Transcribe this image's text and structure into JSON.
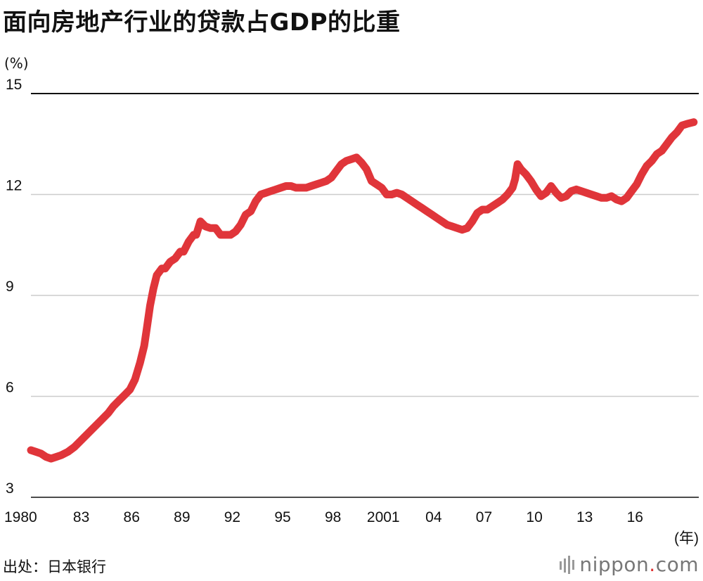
{
  "page": {
    "title": "面向房地产行业的贷款占GDP的比重",
    "source": "出处：日本银行"
  },
  "brand": {
    "text_main": "nippon",
    "text_dot": ".",
    "text_tld": "com"
  },
  "colors": {
    "line": "#e0353a",
    "grid": "#cccccc",
    "topline": "#111111"
  },
  "chart_data": {
    "type": "line",
    "title": "面向房地产行业的贷款占GDP的比重",
    "ylabel": "(%)",
    "xlabel": "(年)",
    "ylim": [
      3,
      15
    ],
    "xlim": [
      1980,
      2019.8
    ],
    "yticks": [
      3,
      6,
      9,
      12,
      15
    ],
    "xticks": [
      {
        "value": 1980,
        "label": "1980"
      },
      {
        "value": 1983,
        "label": "83"
      },
      {
        "value": 1986,
        "label": "86"
      },
      {
        "value": 1989,
        "label": "89"
      },
      {
        "value": 1992,
        "label": "92"
      },
      {
        "value": 1995,
        "label": "95"
      },
      {
        "value": 1998,
        "label": "98"
      },
      {
        "value": 2001,
        "label": "2001"
      },
      {
        "value": 2004,
        "label": "04"
      },
      {
        "value": 2007,
        "label": "07"
      },
      {
        "value": 2010,
        "label": "10"
      },
      {
        "value": 2013,
        "label": "13"
      },
      {
        "value": 2016,
        "label": "16"
      }
    ],
    "grid": true,
    "series": [
      {
        "x": [
          1980.0,
          1980.3,
          1980.6,
          1980.9,
          1981.2,
          1981.5,
          1981.8,
          1982.2,
          1982.6,
          1983.0,
          1983.4,
          1983.8,
          1984.2,
          1984.6,
          1984.9,
          1985.3,
          1985.6,
          1985.9,
          1986.2,
          1986.5,
          1986.75,
          1986.9,
          1987.1,
          1987.3,
          1987.5,
          1987.8,
          1988.0,
          1988.3,
          1988.6,
          1988.9,
          1989.1,
          1989.4,
          1989.7,
          1989.85,
          1990.1,
          1990.4,
          1990.7,
          1991.0,
          1991.3,
          1991.6,
          1991.9,
          1992.2,
          1992.5,
          1992.8,
          1993.1,
          1993.4,
          1993.7,
          1994.0,
          1994.3,
          1994.6,
          1994.9,
          1995.2,
          1995.5,
          1995.8,
          1996.1,
          1996.4,
          1996.7,
          1997.0,
          1997.3,
          1997.6,
          1997.9,
          1998.2,
          1998.5,
          1998.8,
          1999.1,
          1999.4,
          1999.7,
          2000.0,
          2000.3,
          2000.6,
          2000.9,
          2001.2,
          2001.5,
          2001.8,
          2002.1,
          2002.4,
          2002.7,
          2003.0,
          2003.3,
          2003.6,
          2003.9,
          2004.2,
          2004.5,
          2004.8,
          2005.1,
          2005.4,
          2005.7,
          2006.0,
          2006.3,
          2006.6,
          2006.9,
          2007.2,
          2007.5,
          2007.8,
          2008.1,
          2008.4,
          2008.7,
          2008.85,
          2009.0,
          2009.2,
          2009.5,
          2009.8,
          2010.1,
          2010.4,
          2010.7,
          2011.0,
          2011.3,
          2011.6,
          2011.9,
          2012.2,
          2012.5,
          2012.8,
          2013.1,
          2013.4,
          2013.7,
          2014.0,
          2014.3,
          2014.6,
          2014.9,
          2015.2,
          2015.5,
          2015.8,
          2016.1,
          2016.4,
          2016.7,
          2017.0,
          2017.3,
          2017.6,
          2017.9,
          2018.2,
          2018.5,
          2018.8,
          2019.1,
          2019.5
        ],
        "values": [
          4.4,
          4.35,
          4.3,
          4.2,
          4.15,
          4.2,
          4.25,
          4.35,
          4.5,
          4.7,
          4.9,
          5.1,
          5.3,
          5.5,
          5.7,
          5.9,
          6.05,
          6.2,
          6.5,
          7.0,
          7.5,
          8.0,
          8.7,
          9.2,
          9.6,
          9.8,
          9.8,
          10.0,
          10.1,
          10.3,
          10.3,
          10.6,
          10.8,
          10.8,
          11.2,
          11.05,
          11.0,
          11.0,
          10.8,
          10.8,
          10.8,
          10.9,
          11.1,
          11.4,
          11.5,
          11.8,
          12.0,
          12.05,
          12.1,
          12.15,
          12.2,
          12.25,
          12.25,
          12.2,
          12.2,
          12.2,
          12.25,
          12.3,
          12.35,
          12.4,
          12.5,
          12.7,
          12.9,
          13.0,
          13.05,
          13.1,
          12.95,
          12.75,
          12.4,
          12.3,
          12.2,
          12.0,
          12.0,
          12.05,
          12.0,
          11.9,
          11.8,
          11.7,
          11.6,
          11.5,
          11.4,
          11.3,
          11.2,
          11.1,
          11.05,
          11.0,
          10.95,
          11.0,
          11.2,
          11.45,
          11.55,
          11.55,
          11.65,
          11.75,
          11.85,
          12.0,
          12.2,
          12.45,
          12.9,
          12.75,
          12.6,
          12.4,
          12.15,
          11.95,
          12.05,
          12.25,
          12.05,
          11.9,
          11.95,
          12.1,
          12.15,
          12.1,
          12.05,
          12.0,
          11.95,
          11.9,
          11.9,
          11.95,
          11.85,
          11.8,
          11.9,
          12.1,
          12.3,
          12.6,
          12.85,
          13.0,
          13.2,
          13.3,
          13.5,
          13.7,
          13.85,
          14.05,
          14.1,
          14.15
        ]
      }
    ]
  }
}
